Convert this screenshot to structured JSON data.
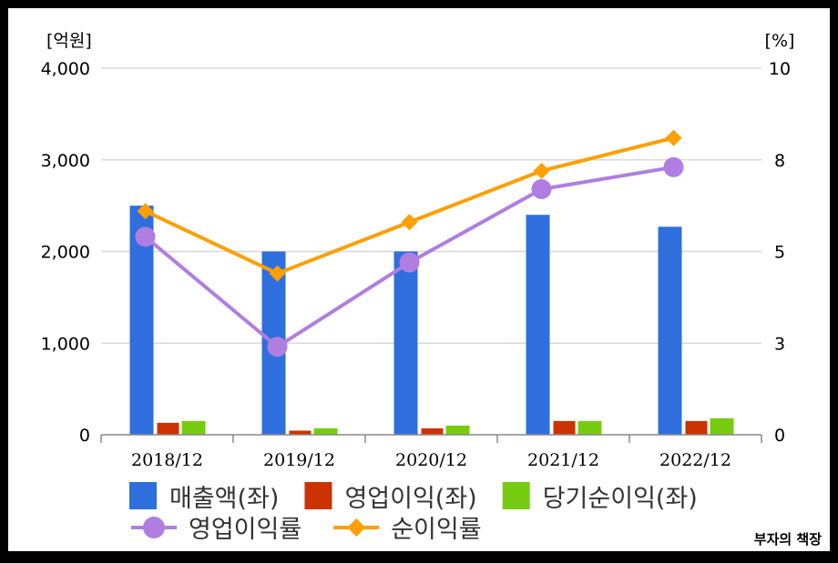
{
  "chart_data": {
    "type": "bar",
    "y_unit_left": "[억원]",
    "y_unit_right": "[%]",
    "categories": [
      "2018/12",
      "2019/12",
      "2020/12",
      "2021/12",
      "2022/12"
    ],
    "y_left_ticks": [
      "0",
      "1,000",
      "2,000",
      "3,000",
      "4,000"
    ],
    "y_right_ticks": [
      "0",
      "3",
      "5",
      "8",
      "10"
    ],
    "ylim_left": [
      0,
      4000
    ],
    "ylim_right": [
      0,
      10
    ],
    "bar_series": [
      {
        "name": "매출액(좌)",
        "color": "#2f6fdd",
        "values": [
          2500,
          2000,
          2000,
          2400,
          2270
        ]
      },
      {
        "name": "영업이익(좌)",
        "color": "#cc3300",
        "values": [
          130,
          45,
          70,
          150,
          150
        ]
      },
      {
        "name": "당기순이익(좌)",
        "color": "#77cc11",
        "values": [
          150,
          70,
          100,
          150,
          180
        ]
      }
    ],
    "line_series": [
      {
        "name": "영업이익률",
        "color": "#b07ee0",
        "marker": "circle",
        "values": [
          5.4,
          2.4,
          4.7,
          6.7,
          7.3
        ]
      },
      {
        "name": "순이익률",
        "color": "#ff9f00",
        "marker": "diamond",
        "values": [
          6.1,
          4.4,
          5.8,
          7.2,
          8.1
        ]
      }
    ],
    "grid": true,
    "legend_position": "bottom"
  },
  "watermark": "부자의 책장"
}
